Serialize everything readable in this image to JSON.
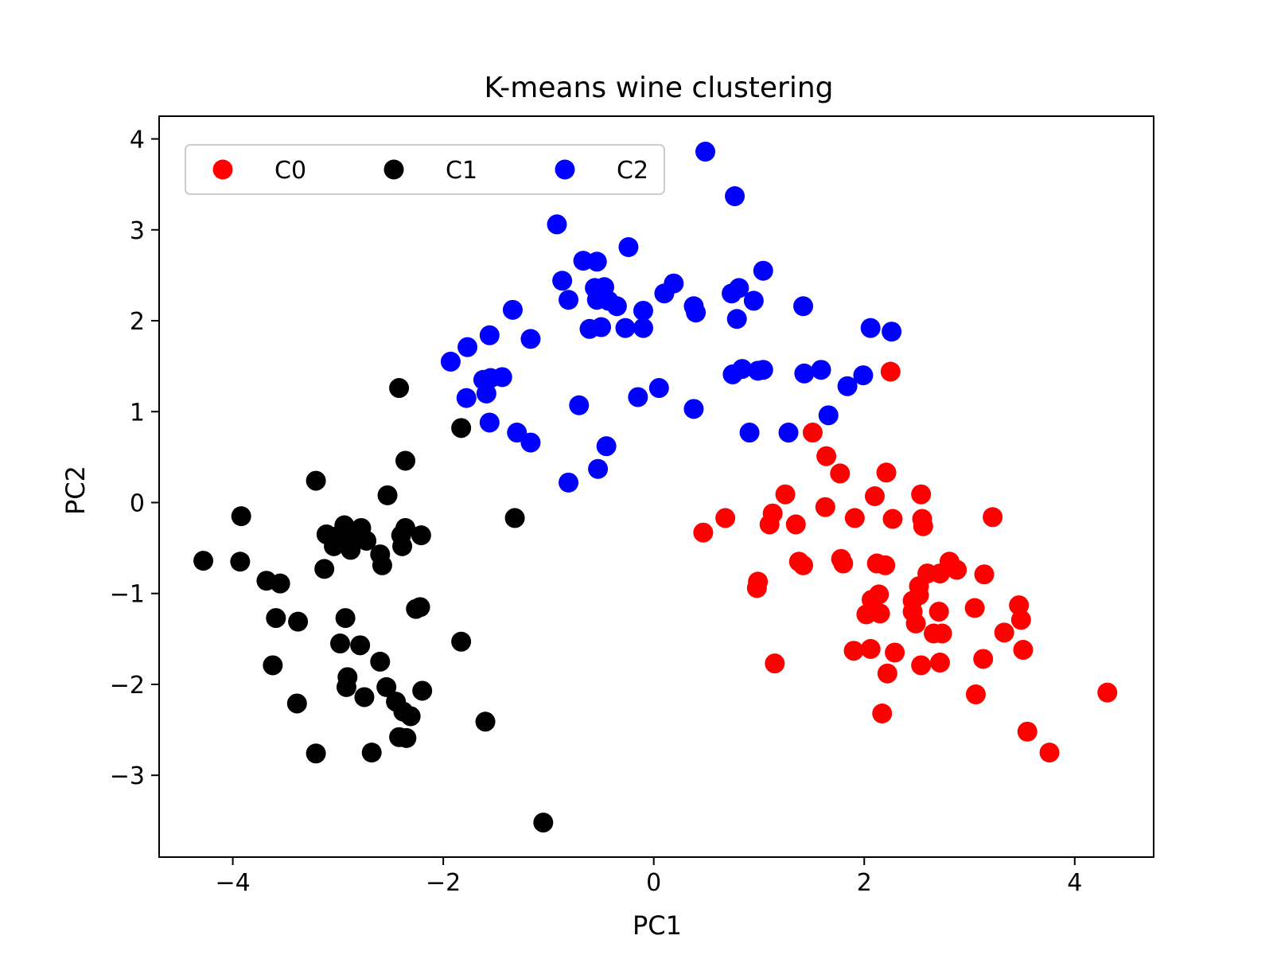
{
  "chart_data": {
    "type": "scatter",
    "title": "K-means wine clustering",
    "xlabel": "PC1",
    "ylabel": "PC2",
    "xlim": [
      -4.7,
      4.75
    ],
    "ylim": [
      -3.9,
      4.25
    ],
    "xticks": [
      {
        "value": -4,
        "label": "−4"
      },
      {
        "value": -2,
        "label": "−2"
      },
      {
        "value": 0,
        "label": "0"
      },
      {
        "value": 2,
        "label": "2"
      },
      {
        "value": 4,
        "label": "4"
      }
    ],
    "yticks": [
      {
        "value": -3,
        "label": "−3"
      },
      {
        "value": -2,
        "label": "−2"
      },
      {
        "value": -1,
        "label": "−1"
      },
      {
        "value": 0,
        "label": "0"
      },
      {
        "value": 1,
        "label": "1"
      },
      {
        "value": 2,
        "label": "2"
      },
      {
        "value": 3,
        "label": "3"
      },
      {
        "value": 4,
        "label": "4"
      }
    ],
    "grid": false,
    "legend": {
      "placement": "upper-left",
      "columns": 3
    },
    "series": [
      {
        "name": "C0",
        "color": "#ff0000",
        "points": [
          [
            2.25,
            1.44
          ],
          [
            1.51,
            0.77
          ],
          [
            1.64,
            0.51
          ],
          [
            1.77,
            0.32
          ],
          [
            2.21,
            0.33
          ],
          [
            1.25,
            0.09
          ],
          [
            2.1,
            0.07
          ],
          [
            2.54,
            0.09
          ],
          [
            1.63,
            -0.05
          ],
          [
            1.13,
            -0.12
          ],
          [
            0.68,
            -0.17
          ],
          [
            1.91,
            -0.17
          ],
          [
            2.27,
            -0.18
          ],
          [
            2.55,
            -0.18
          ],
          [
            3.22,
            -0.16
          ],
          [
            1.1,
            -0.24
          ],
          [
            1.35,
            -0.24
          ],
          [
            2.56,
            -0.26
          ],
          [
            0.47,
            -0.33
          ],
          [
            1.78,
            -0.62
          ],
          [
            1.38,
            -0.65
          ],
          [
            1.42,
            -0.69
          ],
          [
            1.8,
            -0.67
          ],
          [
            2.12,
            -0.67
          ],
          [
            2.2,
            -0.69
          ],
          [
            2.81,
            -0.65
          ],
          [
            2.6,
            -0.78
          ],
          [
            2.72,
            -0.78
          ],
          [
            2.88,
            -0.74
          ],
          [
            3.14,
            -0.79
          ],
          [
            0.99,
            -0.87
          ],
          [
            0.98,
            -0.94
          ],
          [
            2.52,
            -0.92
          ],
          [
            2.14,
            -1.01
          ],
          [
            2.52,
            -1.02
          ],
          [
            2.07,
            -1.07
          ],
          [
            2.46,
            -1.08
          ],
          [
            3.05,
            -1.16
          ],
          [
            3.47,
            -1.13
          ],
          [
            2.02,
            -1.23
          ],
          [
            2.15,
            -1.22
          ],
          [
            2.46,
            -1.2
          ],
          [
            2.71,
            -1.2
          ],
          [
            2.49,
            -1.33
          ],
          [
            3.49,
            -1.29
          ],
          [
            2.66,
            -1.44
          ],
          [
            2.74,
            -1.44
          ],
          [
            3.33,
            -1.43
          ],
          [
            1.9,
            -1.63
          ],
          [
            2.06,
            -1.61
          ],
          [
            2.29,
            -1.65
          ],
          [
            3.51,
            -1.62
          ],
          [
            1.15,
            -1.77
          ],
          [
            2.54,
            -1.79
          ],
          [
            2.72,
            -1.76
          ],
          [
            3.13,
            -1.72
          ],
          [
            2.22,
            -1.88
          ],
          [
            3.06,
            -2.11
          ],
          [
            4.31,
            -2.09
          ],
          [
            2.17,
            -2.32
          ],
          [
            3.55,
            -2.52
          ],
          [
            3.76,
            -2.75
          ]
        ]
      },
      {
        "name": "C1",
        "color": "#000000",
        "points": [
          [
            -2.42,
            1.26
          ],
          [
            -1.83,
            0.82
          ],
          [
            -2.36,
            0.46
          ],
          [
            -3.21,
            0.24
          ],
          [
            -2.53,
            0.08
          ],
          [
            -3.92,
            -0.15
          ],
          [
            -1.32,
            -0.17
          ],
          [
            -2.94,
            -0.25
          ],
          [
            -2.78,
            -0.28
          ],
          [
            -2.36,
            -0.28
          ],
          [
            -3.11,
            -0.35
          ],
          [
            -2.99,
            -0.36
          ],
          [
            -2.87,
            -0.38
          ],
          [
            -2.4,
            -0.36
          ],
          [
            -2.21,
            -0.36
          ],
          [
            -2.73,
            -0.42
          ],
          [
            -3.04,
            -0.48
          ],
          [
            -2.88,
            -0.52
          ],
          [
            -2.6,
            -0.57
          ],
          [
            -2.39,
            -0.48
          ],
          [
            -4.28,
            -0.64
          ],
          [
            -3.93,
            -0.65
          ],
          [
            -2.58,
            -0.69
          ],
          [
            -3.13,
            -0.73
          ],
          [
            -3.68,
            -0.86
          ],
          [
            -3.55,
            -0.89
          ],
          [
            -2.26,
            -1.17
          ],
          [
            -2.22,
            -1.15
          ],
          [
            -3.59,
            -1.27
          ],
          [
            -2.93,
            -1.27
          ],
          [
            -3.38,
            -1.31
          ],
          [
            -2.98,
            -1.55
          ],
          [
            -2.79,
            -1.57
          ],
          [
            -1.83,
            -1.53
          ],
          [
            -3.62,
            -1.79
          ],
          [
            -2.6,
            -1.75
          ],
          [
            -2.91,
            -1.92
          ],
          [
            -2.92,
            -2.03
          ],
          [
            -2.54,
            -2.03
          ],
          [
            -2.2,
            -2.07
          ],
          [
            -2.75,
            -2.14
          ],
          [
            -2.45,
            -2.19
          ],
          [
            -3.39,
            -2.21
          ],
          [
            -2.38,
            -2.3
          ],
          [
            -2.31,
            -2.35
          ],
          [
            -1.6,
            -2.41
          ],
          [
            -2.42,
            -2.58
          ],
          [
            -2.35,
            -2.59
          ],
          [
            -3.21,
            -2.76
          ],
          [
            -2.68,
            -2.75
          ],
          [
            -1.05,
            -3.52
          ]
        ]
      },
      {
        "name": "C2",
        "color": "#0000ff",
        "points": [
          [
            0.49,
            3.86
          ],
          [
            0.77,
            3.37
          ],
          [
            -0.92,
            3.06
          ],
          [
            -0.24,
            2.81
          ],
          [
            -0.67,
            2.66
          ],
          [
            -0.54,
            2.65
          ],
          [
            1.04,
            2.55
          ],
          [
            -0.87,
            2.44
          ],
          [
            0.19,
            2.41
          ],
          [
            -0.56,
            2.36
          ],
          [
            -0.47,
            2.37
          ],
          [
            0.81,
            2.36
          ],
          [
            -0.81,
            2.23
          ],
          [
            -0.54,
            2.23
          ],
          [
            0.1,
            2.3
          ],
          [
            0.74,
            2.3
          ],
          [
            -0.43,
            2.22
          ],
          [
            0.95,
            2.22
          ],
          [
            -1.34,
            2.12
          ],
          [
            -0.35,
            2.16
          ],
          [
            -0.1,
            2.11
          ],
          [
            0.38,
            2.16
          ],
          [
            1.42,
            2.16
          ],
          [
            0.4,
            2.09
          ],
          [
            0.79,
            2.02
          ],
          [
            -1.56,
            1.84
          ],
          [
            -1.17,
            1.8
          ],
          [
            -0.61,
            1.91
          ],
          [
            -0.5,
            1.93
          ],
          [
            -0.27,
            1.92
          ],
          [
            -0.1,
            1.92
          ],
          [
            2.06,
            1.92
          ],
          [
            2.26,
            1.88
          ],
          [
            -1.77,
            1.71
          ],
          [
            -1.93,
            1.55
          ],
          [
            0.75,
            1.41
          ],
          [
            0.84,
            1.47
          ],
          [
            0.99,
            1.45
          ],
          [
            1.04,
            1.46
          ],
          [
            1.43,
            1.42
          ],
          [
            1.59,
            1.46
          ],
          [
            1.99,
            1.4
          ],
          [
            -1.62,
            1.35
          ],
          [
            -1.55,
            1.37
          ],
          [
            -1.44,
            1.38
          ],
          [
            1.84,
            1.28
          ],
          [
            -1.59,
            1.2
          ],
          [
            0.05,
            1.26
          ],
          [
            -1.78,
            1.15
          ],
          [
            -0.15,
            1.16
          ],
          [
            -0.71,
            1.07
          ],
          [
            0.38,
            1.03
          ],
          [
            1.66,
            0.96
          ],
          [
            -1.56,
            0.88
          ],
          [
            -1.3,
            0.77
          ],
          [
            0.91,
            0.77
          ],
          [
            1.28,
            0.77
          ],
          [
            -1.17,
            0.66
          ],
          [
            -0.45,
            0.62
          ],
          [
            -0.53,
            0.37
          ],
          [
            -0.81,
            0.22
          ]
        ]
      }
    ]
  }
}
